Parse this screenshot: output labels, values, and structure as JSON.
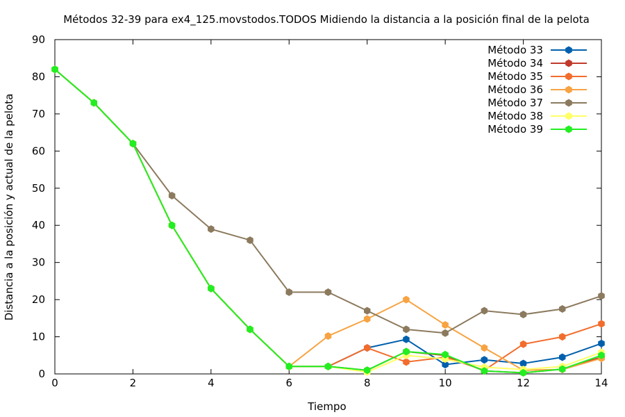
{
  "chart_data": {
    "type": "line",
    "title": "Métodos 32-39 para ex4_125.movstodos.TODOS Midiendo la distancia a la posición final de la pelota",
    "xlabel": "Tiempo",
    "ylabel": "Distancia a la posición y actual de la pelota",
    "xlim": [
      0,
      14
    ],
    "ylim": [
      0,
      90
    ],
    "xticks": [
      0,
      2,
      4,
      6,
      8,
      10,
      12,
      14
    ],
    "yticks": [
      0,
      10,
      20,
      30,
      40,
      50,
      60,
      70,
      80,
      90
    ],
    "grid": false,
    "legend_position": "top-right",
    "x": [
      0,
      1,
      2,
      3,
      4,
      5,
      6,
      7,
      8,
      9,
      10,
      11,
      12,
      13,
      14
    ],
    "series": [
      {
        "name": "Método 33",
        "color": "#0060ad",
        "values": [
          82,
          73,
          62,
          40,
          23,
          12,
          2,
          2,
          7,
          9.3,
          2.5,
          3.8,
          2.8,
          4.5,
          8.2
        ]
      },
      {
        "name": "Método 34",
        "color": "#c0392b",
        "values": [
          82,
          73,
          62,
          40,
          23,
          12,
          2,
          2,
          1,
          6,
          5,
          0.8,
          0.3,
          1.3,
          4.5
        ]
      },
      {
        "name": "Método 35",
        "color": "#f26d2d",
        "values": [
          82,
          73,
          62,
          40,
          23,
          12,
          2,
          2,
          7,
          3.2,
          4.5,
          1,
          8,
          10,
          13.5
        ]
      },
      {
        "name": "Método 36",
        "color": "#f7a342",
        "values": [
          82,
          73,
          62,
          40,
          23,
          12,
          2,
          10.2,
          14.8,
          20,
          13.2,
          7,
          1,
          1.2,
          4.2
        ]
      },
      {
        "name": "Método 37",
        "color": "#8c7a5e",
        "values": [
          82,
          73,
          62,
          48,
          39,
          36,
          22,
          22,
          17,
          12,
          11,
          17,
          16,
          17.5,
          21
        ]
      },
      {
        "name": "Método 38",
        "color": "#ffff66",
        "values": [
          82,
          73,
          62,
          40,
          23,
          12,
          2,
          2,
          0.5,
          5,
          4,
          1.8,
          1.2,
          2,
          5.8
        ]
      },
      {
        "name": "Método 39",
        "color": "#22ee22",
        "values": [
          82,
          73,
          62,
          40,
          23,
          12,
          2,
          2,
          1,
          6,
          5.2,
          0.8,
          0.3,
          1.3,
          5
        ]
      }
    ]
  }
}
